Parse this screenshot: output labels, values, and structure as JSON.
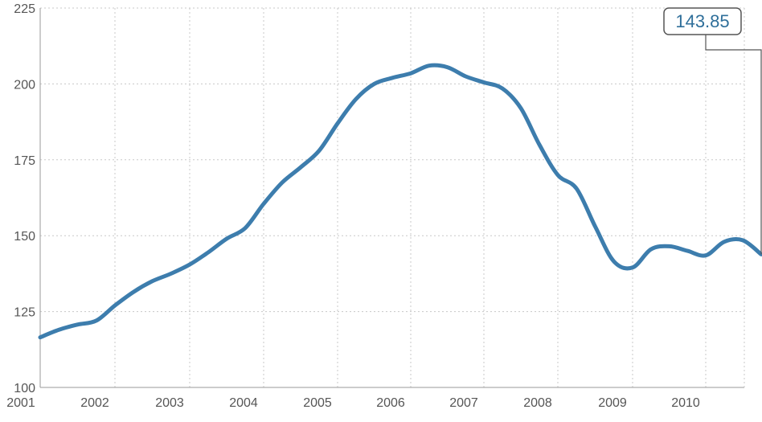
{
  "chart_data": {
    "type": "line",
    "title": "",
    "xlabel": "",
    "ylabel": "",
    "ylim": [
      100,
      225
    ],
    "yticks": [
      "100",
      "125",
      "150",
      "175",
      "200",
      "225"
    ],
    "xticks": [
      "2001",
      "2002",
      "2003",
      "2004",
      "2005",
      "2006",
      "2007",
      "2008",
      "2009",
      "2010"
    ],
    "grid": true,
    "line_color": "#3d7dad",
    "callout": {
      "label": "143.85",
      "value": 143.85,
      "color": "#2f6f9a"
    },
    "series": [
      {
        "x": [
          "2001-01",
          "2001-04",
          "2001-07",
          "2001-10",
          "2002-01",
          "2002-04",
          "2002-07",
          "2002-10",
          "2003-01",
          "2003-04",
          "2003-07",
          "2003-10",
          "2004-01",
          "2004-04",
          "2004-07",
          "2004-10",
          "2005-01",
          "2005-04",
          "2005-07",
          "2005-10",
          "2006-01",
          "2006-04",
          "2006-07",
          "2006-10",
          "2007-01",
          "2007-04",
          "2007-07",
          "2007-10",
          "2008-01",
          "2008-04",
          "2008-07",
          "2008-10",
          "2009-01",
          "2009-04",
          "2009-07",
          "2009-10",
          "2010-01",
          "2010-04",
          "2010-07",
          "2010-10"
        ],
        "values": [
          116.5,
          119.0,
          120.7,
          122.0,
          127.0,
          131.5,
          135.0,
          137.5,
          140.5,
          144.5,
          149.0,
          152.5,
          160.5,
          167.5,
          172.5,
          178.0,
          187.0,
          195.0,
          200.0,
          202.0,
          203.5,
          206.0,
          205.5,
          202.5,
          200.5,
          198.5,
          192.0,
          180.0,
          170.0,
          165.5,
          153.0,
          141.5,
          139.5,
          145.5,
          146.5,
          145.0,
          143.5,
          148.0,
          148.5,
          143.85
        ]
      }
    ]
  }
}
